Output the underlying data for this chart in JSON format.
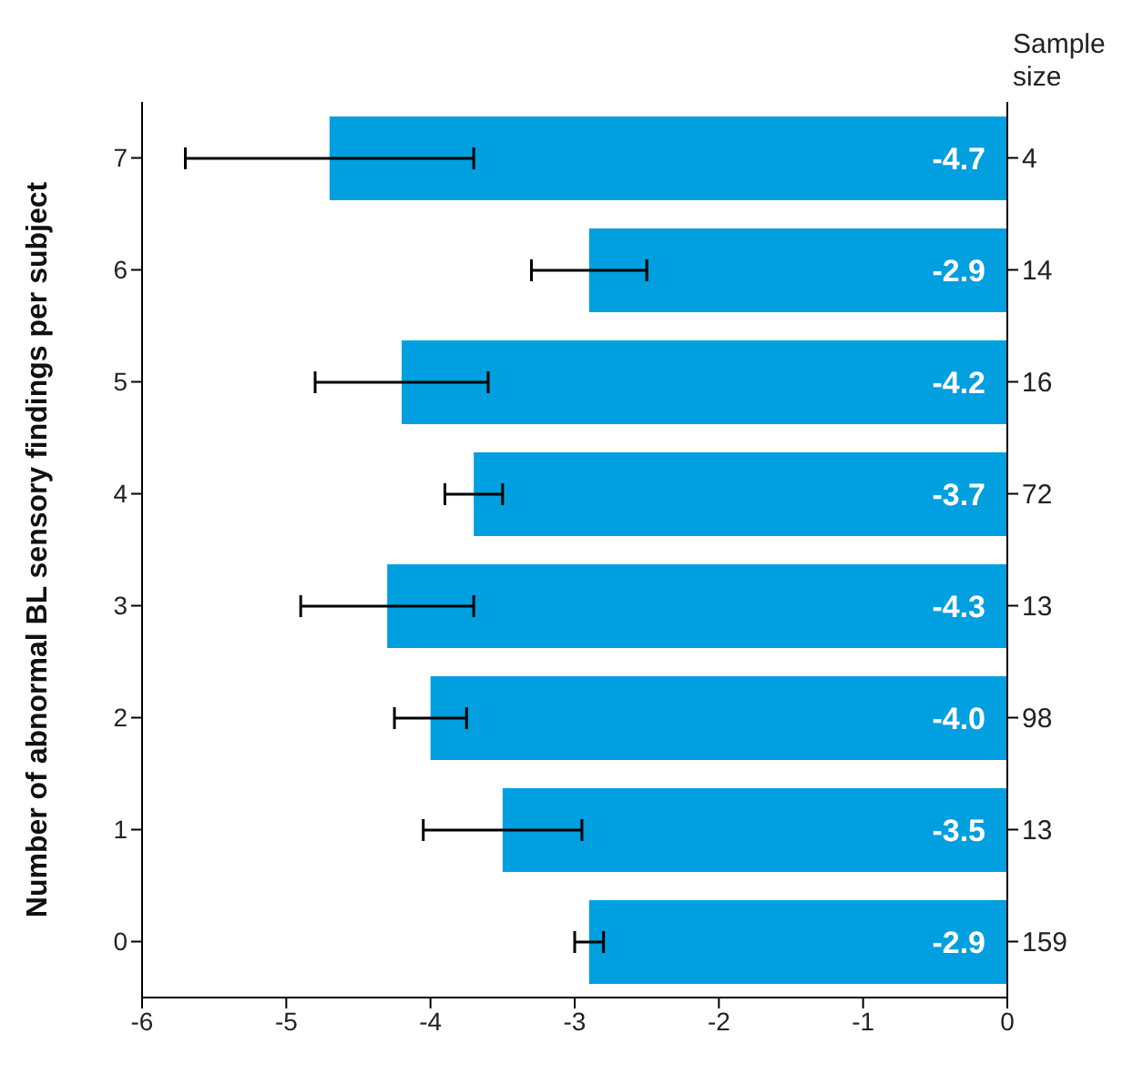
{
  "chart_data": {
    "type": "bar",
    "orientation": "horizontal",
    "ylabel": "Number of abnormal BL sensory findings per subject",
    "y2label": "Sample size",
    "categories": [
      "7",
      "6",
      "5",
      "4",
      "3",
      "2",
      "1",
      "0"
    ],
    "values": [
      -4.7,
      -2.9,
      -4.2,
      -3.7,
      -4.3,
      -4.0,
      -3.5,
      -2.9
    ],
    "errors": [
      1.0,
      0.4,
      0.6,
      0.2,
      0.6,
      0.25,
      0.55,
      0.1
    ],
    "color": "#009fdf",
    "value_labels": [
      "-4.7",
      "-2.9",
      "-4.2",
      "-3.7",
      "-4.3",
      "-4.0",
      "-3.5",
      "-2.9"
    ],
    "grid": false,
    "legend": false,
    "xlim": [
      -6,
      0
    ],
    "xticks": [
      -6,
      -5,
      -4,
      -3,
      -2,
      -1,
      0
    ],
    "annotations": [
      "4",
      "14",
      "16",
      "72",
      "13",
      "98",
      "13",
      "159"
    ]
  }
}
